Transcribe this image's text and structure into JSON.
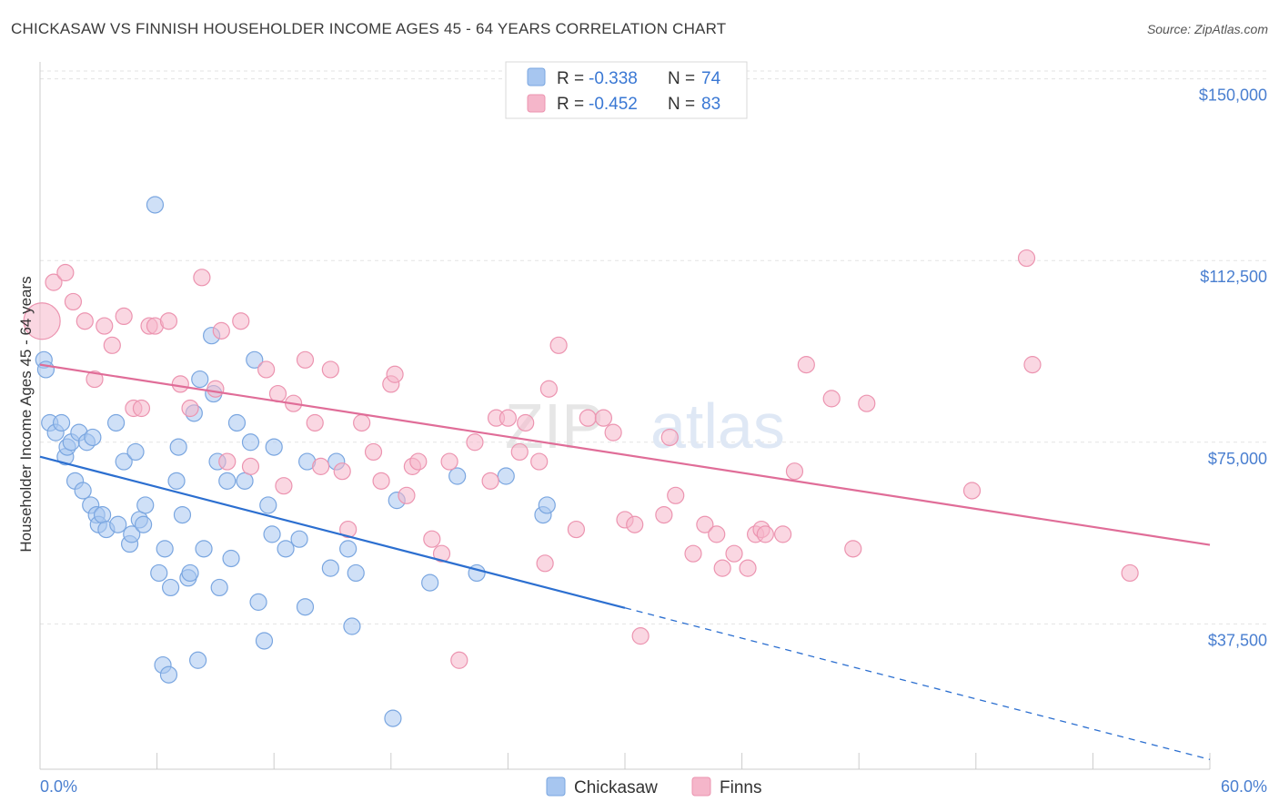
{
  "header": {
    "title": "CHICKASAW VS FINNISH HOUSEHOLDER INCOME AGES 45 - 64 YEARS CORRELATION CHART",
    "source": "Source: ZipAtlas.com"
  },
  "watermark": {
    "zip": "ZIP",
    "atlas": "atlas"
  },
  "legend_top": {
    "items": [
      {
        "r_label": "R = ",
        "r_value": "-0.338",
        "n_label": "N = ",
        "n_value": "74",
        "color": "#a7c6f0"
      },
      {
        "r_label": "R = ",
        "r_value": "-0.452",
        "n_label": "N = ",
        "n_value": "83",
        "color": "#f5b6ca"
      }
    ]
  },
  "chart_data": {
    "type": "scatter",
    "title": "CHICKASAW VS FINNISH HOUSEHOLDER INCOME AGES 45 - 64 YEARS CORRELATION CHART",
    "xlabel": "",
    "ylabel": "Householder Income Ages 45 - 64 years",
    "xlim": [
      0,
      60
    ],
    "ylim": [
      7500,
      153500
    ],
    "x_tick_labels": [
      "0.0%",
      "60.0%"
    ],
    "y_ticks": [
      37500,
      75000,
      112500,
      150000
    ],
    "y_tick_labels": [
      "$37,500",
      "$75,000",
      "$112,500",
      "$150,000"
    ],
    "grid": true,
    "legend_position": "top-center",
    "series": [
      {
        "name": "Chickasaw",
        "color": "#a7c6f0",
        "stroke": "#7aa6e0",
        "trend": {
          "x0": 0,
          "y0": 72000,
          "x1": 30,
          "y1": 40800,
          "dashed_to_x": 60,
          "dashed_to_y": 9500,
          "color": "#2c6fd0"
        },
        "points": [
          [
            0.2,
            92
          ],
          [
            0.3,
            90
          ],
          [
            0.5,
            79
          ],
          [
            0.8,
            77
          ],
          [
            1.1,
            79
          ],
          [
            1.3,
            72
          ],
          [
            1.4,
            74
          ],
          [
            1.6,
            75
          ],
          [
            1.8,
            67
          ],
          [
            2.0,
            77
          ],
          [
            2.2,
            65
          ],
          [
            2.4,
            75
          ],
          [
            2.6,
            62
          ],
          [
            2.7,
            76
          ],
          [
            2.9,
            60
          ],
          [
            3.0,
            58
          ],
          [
            3.2,
            60
          ],
          [
            3.4,
            57
          ],
          [
            3.9,
            79
          ],
          [
            4.0,
            58
          ],
          [
            4.3,
            71
          ],
          [
            4.6,
            54
          ],
          [
            4.7,
            56
          ],
          [
            4.9,
            73
          ],
          [
            5.1,
            59
          ],
          [
            5.3,
            58
          ],
          [
            5.4,
            62
          ],
          [
            5.9,
            124
          ],
          [
            6.1,
            48
          ],
          [
            6.3,
            29
          ],
          [
            6.4,
            53
          ],
          [
            6.6,
            27
          ],
          [
            6.7,
            45
          ],
          [
            7.1,
            74
          ],
          [
            7.0,
            67
          ],
          [
            7.3,
            60
          ],
          [
            7.6,
            47
          ],
          [
            7.7,
            48
          ],
          [
            7.9,
            81
          ],
          [
            8.1,
            30
          ],
          [
            8.2,
            88
          ],
          [
            8.4,
            53
          ],
          [
            8.8,
            97
          ],
          [
            8.9,
            85
          ],
          [
            9.1,
            71
          ],
          [
            9.2,
            45
          ],
          [
            9.6,
            67
          ],
          [
            9.8,
            51
          ],
          [
            10.1,
            79
          ],
          [
            10.5,
            67
          ],
          [
            10.8,
            75
          ],
          [
            11.0,
            92
          ],
          [
            11.2,
            42
          ],
          [
            11.5,
            34
          ],
          [
            11.7,
            62
          ],
          [
            11.9,
            56
          ],
          [
            12.0,
            74
          ],
          [
            12.6,
            53
          ],
          [
            13.3,
            55
          ],
          [
            13.6,
            41
          ],
          [
            13.7,
            71
          ],
          [
            14.9,
            49
          ],
          [
            15.2,
            71
          ],
          [
            15.8,
            53
          ],
          [
            16.0,
            37
          ],
          [
            16.2,
            48
          ],
          [
            18.1,
            18
          ],
          [
            18.3,
            63
          ],
          [
            20.0,
            46
          ],
          [
            21.4,
            68
          ],
          [
            22.4,
            48
          ],
          [
            23.9,
            68
          ],
          [
            25.8,
            60
          ],
          [
            26.0,
            62
          ]
        ]
      },
      {
        "name": "Finns",
        "color": "#f5b6ca",
        "stroke": "#ec94b0",
        "trend": {
          "x0": 0,
          "y0": 91000,
          "x1": 60,
          "y1": 53800,
          "color": "#e06d98"
        },
        "points": [
          [
            0.1,
            100
          ],
          [
            0.7,
            108
          ],
          [
            1.3,
            110
          ],
          [
            1.7,
            104
          ],
          [
            2.3,
            100
          ],
          [
            2.8,
            88
          ],
          [
            3.3,
            99
          ],
          [
            3.7,
            95
          ],
          [
            4.3,
            101
          ],
          [
            4.8,
            82
          ],
          [
            5.2,
            82
          ],
          [
            5.6,
            99
          ],
          [
            5.9,
            99
          ],
          [
            6.6,
            100
          ],
          [
            7.2,
            87
          ],
          [
            7.7,
            82
          ],
          [
            8.3,
            109
          ],
          [
            9.0,
            86
          ],
          [
            9.3,
            98
          ],
          [
            9.6,
            71
          ],
          [
            10.3,
            100
          ],
          [
            10.8,
            70
          ],
          [
            11.6,
            90
          ],
          [
            12.2,
            85
          ],
          [
            12.5,
            66
          ],
          [
            13.0,
            83
          ],
          [
            13.6,
            92
          ],
          [
            14.1,
            79
          ],
          [
            14.4,
            70
          ],
          [
            14.9,
            90
          ],
          [
            15.5,
            69
          ],
          [
            15.8,
            57
          ],
          [
            16.5,
            79
          ],
          [
            17.1,
            73
          ],
          [
            17.5,
            67
          ],
          [
            18.0,
            87
          ],
          [
            18.2,
            89
          ],
          [
            18.8,
            64
          ],
          [
            19.1,
            70
          ],
          [
            19.4,
            71
          ],
          [
            20.1,
            55
          ],
          [
            20.6,
            52
          ],
          [
            21.0,
            71
          ],
          [
            21.5,
            30
          ],
          [
            22.3,
            75
          ],
          [
            23.1,
            67
          ],
          [
            23.4,
            80
          ],
          [
            24.0,
            80
          ],
          [
            24.6,
            73
          ],
          [
            24.9,
            79
          ],
          [
            25.6,
            71
          ],
          [
            25.9,
            50
          ],
          [
            26.1,
            86
          ],
          [
            26.6,
            95
          ],
          [
            27.5,
            57
          ],
          [
            28.1,
            80
          ],
          [
            28.9,
            80
          ],
          [
            29.4,
            77
          ],
          [
            30.0,
            59
          ],
          [
            30.5,
            58
          ],
          [
            30.8,
            35
          ],
          [
            32.0,
            60
          ],
          [
            32.3,
            76
          ],
          [
            32.6,
            64
          ],
          [
            33.5,
            52
          ],
          [
            34.1,
            58
          ],
          [
            34.7,
            56
          ],
          [
            35.0,
            49
          ],
          [
            35.6,
            52
          ],
          [
            36.3,
            49
          ],
          [
            36.7,
            56
          ],
          [
            37.0,
            57
          ],
          [
            37.2,
            56
          ],
          [
            38.1,
            56
          ],
          [
            38.7,
            69
          ],
          [
            39.3,
            91
          ],
          [
            40.6,
            84
          ],
          [
            41.7,
            53
          ],
          [
            42.4,
            83
          ],
          [
            47.8,
            65
          ],
          [
            50.6,
            113
          ],
          [
            50.9,
            91
          ],
          [
            55.9,
            48
          ]
        ]
      }
    ]
  },
  "legend_bottom": {
    "items": [
      {
        "label": "Chickasaw",
        "color": "#a7c6f0"
      },
      {
        "label": "Finns",
        "color": "#f5b6ca"
      }
    ]
  }
}
